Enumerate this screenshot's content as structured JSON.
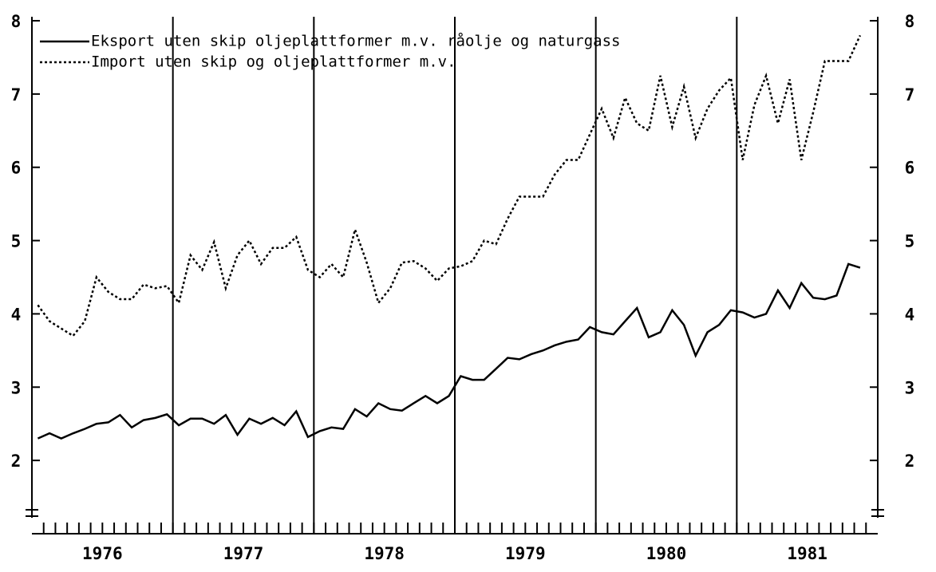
{
  "chart_data": {
    "type": "line",
    "x": [
      1976.042,
      1976.125,
      1976.208,
      1976.292,
      1976.375,
      1976.458,
      1976.542,
      1976.625,
      1976.708,
      1976.792,
      1976.875,
      1976.958,
      1977.042,
      1977.125,
      1977.208,
      1977.292,
      1977.375,
      1977.458,
      1977.542,
      1977.625,
      1977.708,
      1977.792,
      1977.875,
      1977.958,
      1978.042,
      1978.125,
      1978.208,
      1978.292,
      1978.375,
      1978.458,
      1978.542,
      1978.625,
      1978.708,
      1978.792,
      1978.875,
      1978.958,
      1979.042,
      1979.125,
      1979.208,
      1979.292,
      1979.375,
      1979.458,
      1979.542,
      1979.625,
      1979.708,
      1979.792,
      1979.875,
      1979.958,
      1980.042,
      1980.125,
      1980.208,
      1980.292,
      1980.375,
      1980.458,
      1980.542,
      1980.625,
      1980.708,
      1980.792,
      1980.875,
      1980.958,
      1981.042,
      1981.125,
      1981.208,
      1981.292,
      1981.375,
      1981.458,
      1981.542,
      1981.625,
      1981.708,
      1981.792,
      1981.875
    ],
    "series": [
      {
        "name": "Eksport uten skip oljeplattformer m.v. råolje og naturgass",
        "style": "solid",
        "color": "#000000",
        "values": [
          2.3,
          2.37,
          2.3,
          2.37,
          2.43,
          2.5,
          2.52,
          2.62,
          2.45,
          2.55,
          2.58,
          2.63,
          2.48,
          2.57,
          2.57,
          2.5,
          2.62,
          2.35,
          2.57,
          2.5,
          2.58,
          2.48,
          2.67,
          2.32,
          2.4,
          2.45,
          2.43,
          2.7,
          2.6,
          2.78,
          2.7,
          2.68,
          2.78,
          2.88,
          2.78,
          2.88,
          3.15,
          3.1,
          3.1,
          3.25,
          3.4,
          3.38,
          3.45,
          3.5,
          3.57,
          3.62,
          3.65,
          3.82,
          3.75,
          3.72,
          3.9,
          4.08,
          3.68,
          3.75,
          4.05,
          3.85,
          3.43,
          3.75,
          3.85,
          4.05,
          4.02,
          3.95,
          4.0,
          4.32,
          4.08,
          4.42,
          4.22,
          4.2,
          4.25,
          4.68,
          4.63
        ]
      },
      {
        "name": "Import uten skip og oljeplattformer  m.v.",
        "style": "dotted",
        "color": "#000000",
        "values": [
          4.12,
          3.9,
          3.8,
          3.7,
          3.9,
          4.5,
          4.3,
          4.2,
          4.2,
          4.4,
          4.35,
          4.38,
          4.15,
          4.8,
          4.6,
          4.98,
          4.35,
          4.8,
          5.0,
          4.68,
          4.9,
          4.9,
          5.05,
          4.6,
          4.5,
          4.68,
          4.5,
          5.15,
          4.7,
          4.15,
          4.35,
          4.7,
          4.72,
          4.62,
          4.45,
          4.62,
          4.65,
          4.72,
          5.0,
          4.95,
          5.3,
          5.6,
          5.6,
          5.6,
          5.9,
          6.1,
          6.1,
          6.45,
          6.8,
          6.4,
          6.95,
          6.6,
          6.5,
          7.25,
          6.55,
          7.1,
          6.4,
          6.8,
          7.05,
          7.22,
          6.1,
          6.85,
          7.25,
          6.6,
          7.2,
          6.1,
          6.75,
          7.45,
          7.45,
          7.45,
          7.8
        ]
      }
    ],
    "xlim": [
      1976,
      1982
    ],
    "xticks": [
      {
        "value": 1976.5,
        "label": "1976"
      },
      {
        "value": 1977.5,
        "label": "1977"
      },
      {
        "value": 1978.5,
        "label": "1978"
      },
      {
        "value": 1979.5,
        "label": "1979"
      },
      {
        "value": 1980.5,
        "label": "1980"
      },
      {
        "value": 1981.5,
        "label": "1981"
      }
    ],
    "ylim": [
      1,
      8
    ],
    "yticks": [
      2,
      3,
      4,
      5,
      6,
      7,
      8
    ],
    "legend": "upper left"
  }
}
